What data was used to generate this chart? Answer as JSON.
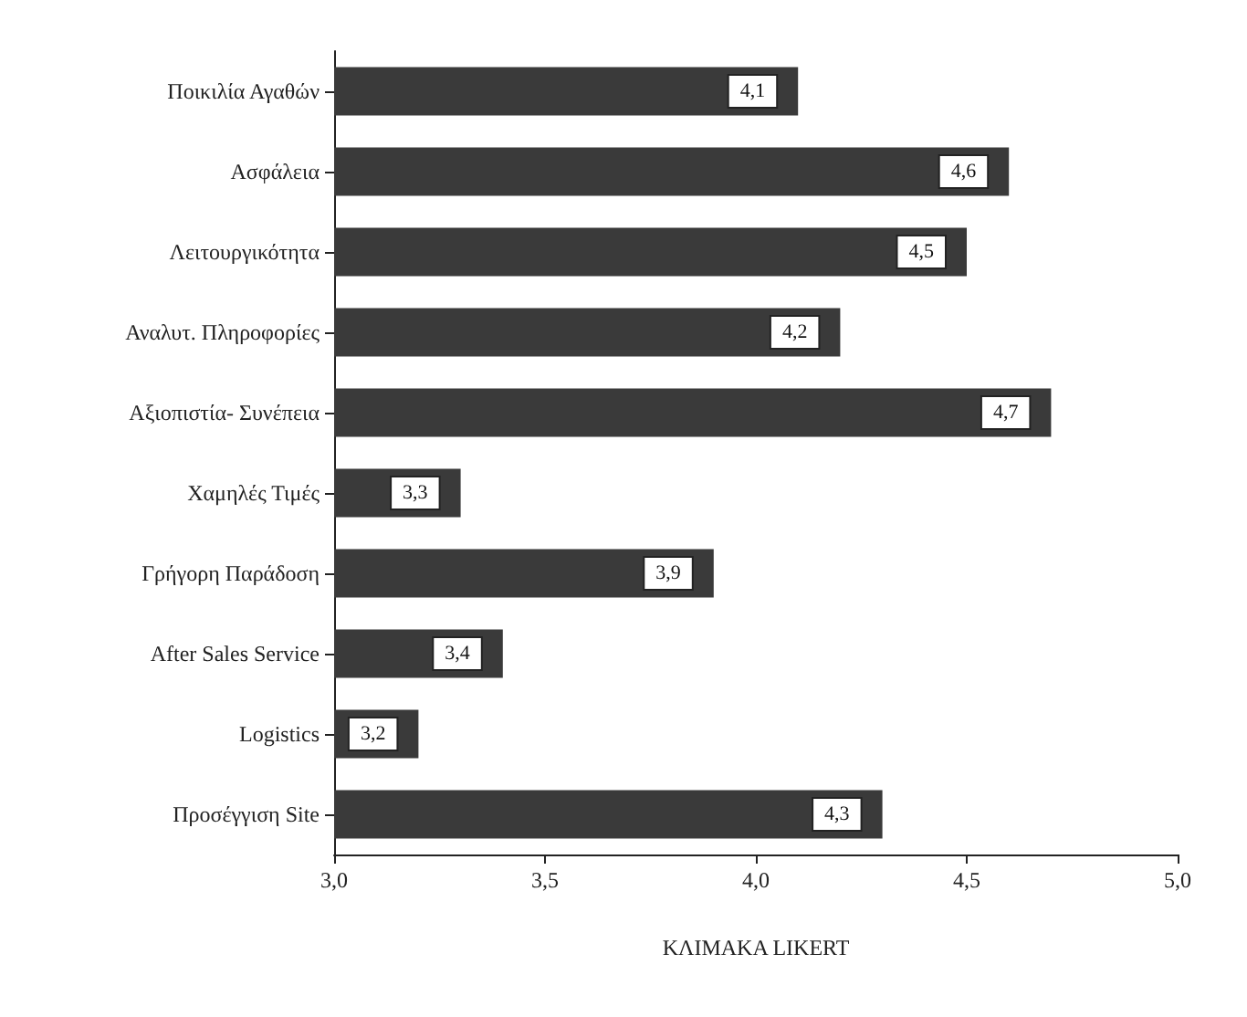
{
  "chart_data": {
    "type": "bar",
    "orientation": "horizontal",
    "xlabel": "ΚΛΙΜΑΚΑ LIKERT",
    "categories": [
      "Ποικιλία Αγαθών",
      "Ασφάλεια",
      "Λειτουργικότητα",
      "Αναλυτ. Πληροφορίες",
      "Αξιοπιστία- Συνέπεια",
      "Χαμηλές Τιμές",
      "Γρήγορη Παράδοση",
      "After Sales Service",
      "Logistics",
      "Προσέγγιση Site"
    ],
    "values": [
      4.1,
      4.6,
      4.5,
      4.2,
      4.7,
      3.3,
      3.9,
      3.4,
      3.2,
      4.3
    ],
    "value_labels": [
      "4,1",
      "4,6",
      "4,5",
      "4,2",
      "4,7",
      "3,3",
      "3,9",
      "3,4",
      "3,2",
      "4,3"
    ],
    "color": "#3a3a3a",
    "xlim": [
      3,
      5
    ],
    "xticks": [
      {
        "value": 3,
        "label": "3,0"
      },
      {
        "value": 3.5,
        "label": "3,5"
      },
      {
        "value": 4,
        "label": "4,0"
      },
      {
        "value": 4.5,
        "label": "4,5"
      },
      {
        "value": 5,
        "label": "5,0"
      }
    ]
  }
}
